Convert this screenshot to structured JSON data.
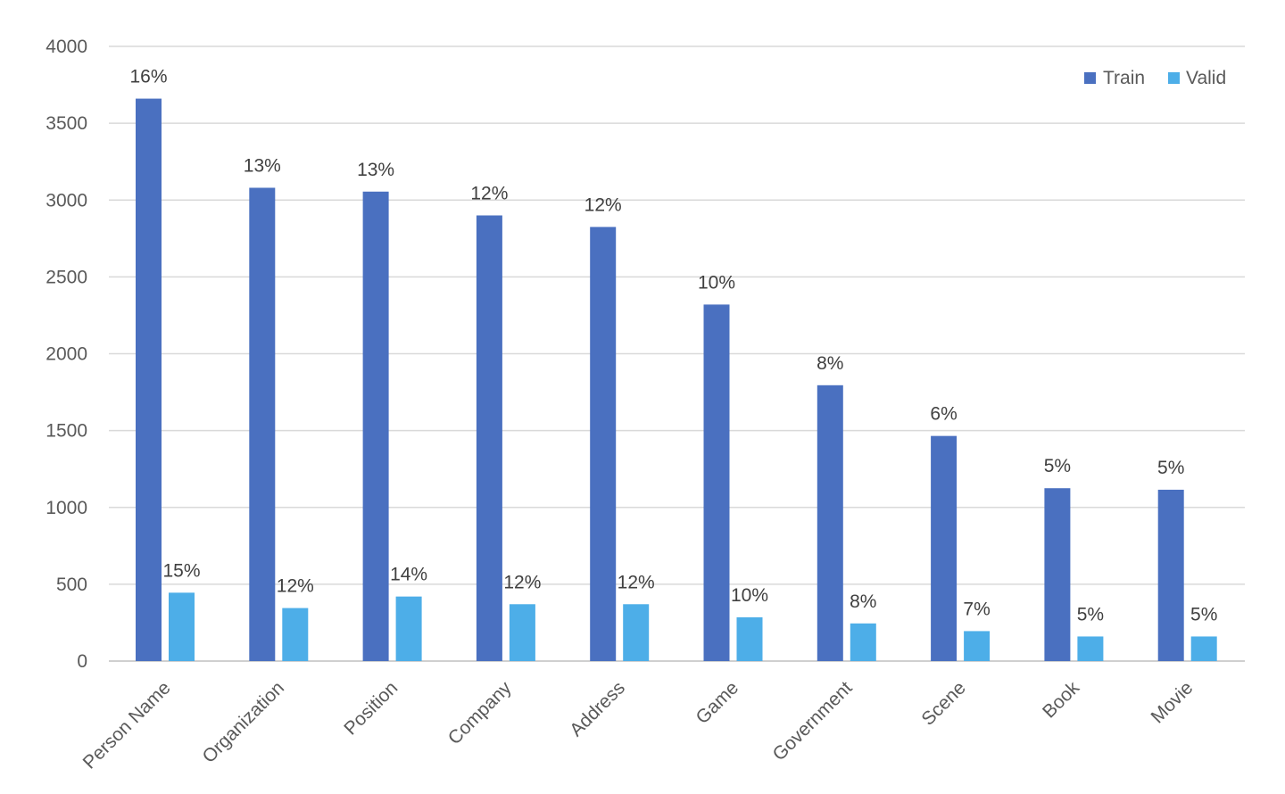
{
  "chart_data": {
    "type": "bar",
    "categories": [
      "Person Name",
      "Organization",
      "Position",
      "Company",
      "Address",
      "Game",
      "Government",
      "Scene",
      "Book",
      "Movie"
    ],
    "series": [
      {
        "name": "Train",
        "color": "#4a70c0",
        "values": [
          3660,
          3080,
          3055,
          2900,
          2825,
          2320,
          1795,
          1465,
          1125,
          1115
        ],
        "labels": [
          "16%",
          "13%",
          "13%",
          "12%",
          "12%",
          "10%",
          "8%",
          "6%",
          "5%",
          "5%"
        ]
      },
      {
        "name": "Valid",
        "color": "#4daee8",
        "values": [
          445,
          345,
          420,
          370,
          370,
          285,
          245,
          195,
          160,
          160
        ],
        "labels": [
          "15%",
          "12%",
          "14%",
          "12%",
          "12%",
          "10%",
          "8%",
          "7%",
          "5%",
          "5%"
        ]
      }
    ],
    "yticks": [
      "0",
      "500",
      "1000",
      "1500",
      "2000",
      "2500",
      "3000",
      "3500",
      "4000"
    ],
    "ylim": [
      0,
      4000
    ],
    "legend_position": "top-right",
    "grid": true
  }
}
